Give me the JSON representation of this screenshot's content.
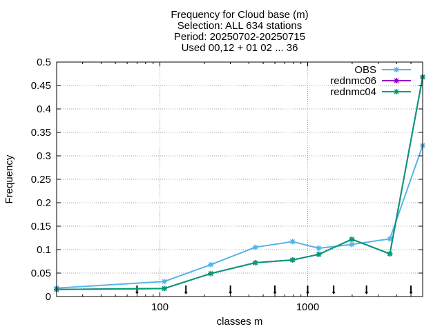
{
  "chart_data": {
    "type": "line",
    "title_lines": [
      "Frequency  for Cloud base (m)",
      "Selection: ALL    634 stations",
      "Period: 20250702-20250715",
      "Used 00,12 + 01 02 ... 36"
    ],
    "xlabel": "classes m",
    "ylabel": "Frequency",
    "x_scale": "log",
    "xlim": [
      20,
      6000
    ],
    "ylim": [
      0,
      0.5
    ],
    "x_ticks": [
      100,
      1000
    ],
    "y_ticks": [
      0,
      0.05,
      0.1,
      0.15,
      0.2,
      0.25,
      0.3,
      0.35,
      0.4,
      0.45,
      0.5
    ],
    "y_tick_labels": [
      "0",
      "0.05",
      "0.1",
      "0.15",
      "0.2",
      "0.25",
      "0.3",
      "0.35",
      "0.4",
      "0.45",
      "0.5"
    ],
    "x_tick_labels": [
      "100",
      "1000"
    ],
    "class_boundary_markers": [
      70,
      150,
      300,
      600,
      1000,
      1500,
      2500,
      5000
    ],
    "grid": true,
    "legend_position": "top-right",
    "series": [
      {
        "name": "OBS",
        "color": "#56b4e9",
        "marker": "star",
        "x": [
          20,
          107,
          221,
          442,
          790,
          1190,
          1990,
          3600,
          6000
        ],
        "y": [
          0.018,
          0.032,
          0.068,
          0.105,
          0.117,
          0.103,
          0.111,
          0.123,
          0.322
        ]
      },
      {
        "name": "rednmc06",
        "color": "#9400d3",
        "marker": "star",
        "x": [
          20,
          107,
          221,
          442,
          790,
          1190,
          1990,
          3600,
          6000
        ],
        "y": [
          0.015,
          0.017,
          0.049,
          0.072,
          0.078,
          0.09,
          0.122,
          0.091,
          0.468
        ]
      },
      {
        "name": "rednmc04",
        "color": "#009e73",
        "marker": "star",
        "x": [
          20,
          107,
          221,
          442,
          790,
          1190,
          1990,
          3600,
          6000
        ],
        "y": [
          0.015,
          0.017,
          0.049,
          0.072,
          0.078,
          0.09,
          0.122,
          0.091,
          0.468
        ]
      }
    ]
  }
}
